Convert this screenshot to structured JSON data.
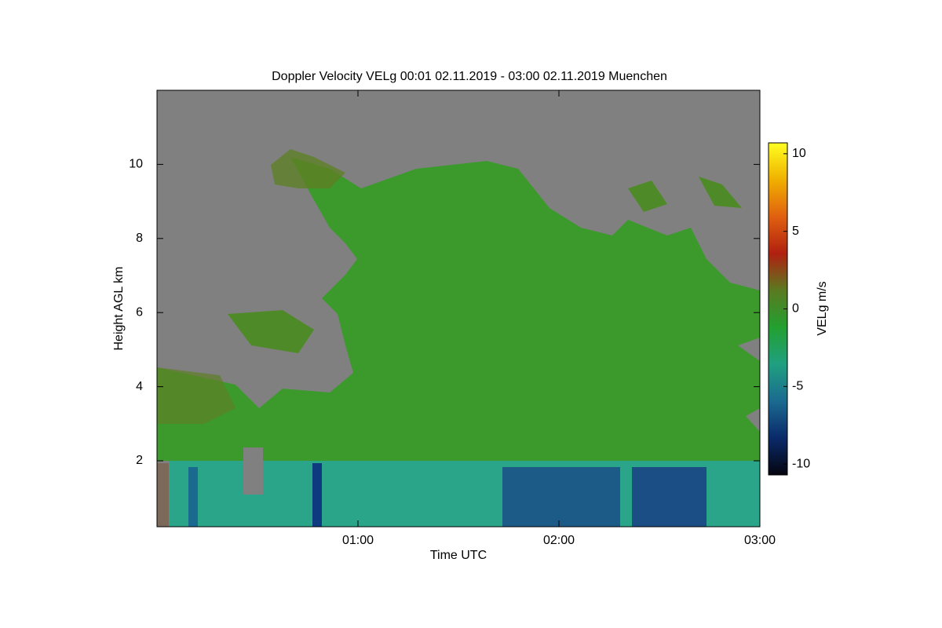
{
  "chart_data": {
    "type": "heatmap",
    "title": "Doppler Velocity VELg   00:01 02.11.2019 - 03:00 02.11.2019 Muenchen",
    "x_label": "Time UTC",
    "y_label": "Height AGL km",
    "xlim": [
      0,
      180
    ],
    "xticks": [
      {
        "value": 60,
        "label": "01:00"
      },
      {
        "value": 120,
        "label": "02:00"
      },
      {
        "value": 180,
        "label": "03:00"
      }
    ],
    "ylim": [
      0.22,
      12
    ],
    "yticks": [
      2,
      4,
      6,
      8,
      10
    ],
    "colorbar": {
      "label": "VELg m/s",
      "lim": [
        -10.7,
        10.7
      ],
      "ticks": [
        -10,
        -5,
        0,
        5,
        10
      ],
      "colormap": [
        "#05050f",
        "#0a2a6a",
        "#1a6a90",
        "#20a080",
        "#22a030",
        "#5a7a20",
        "#b02010",
        "#e06010",
        "#f0b000",
        "#ffff20"
      ]
    }
  }
}
